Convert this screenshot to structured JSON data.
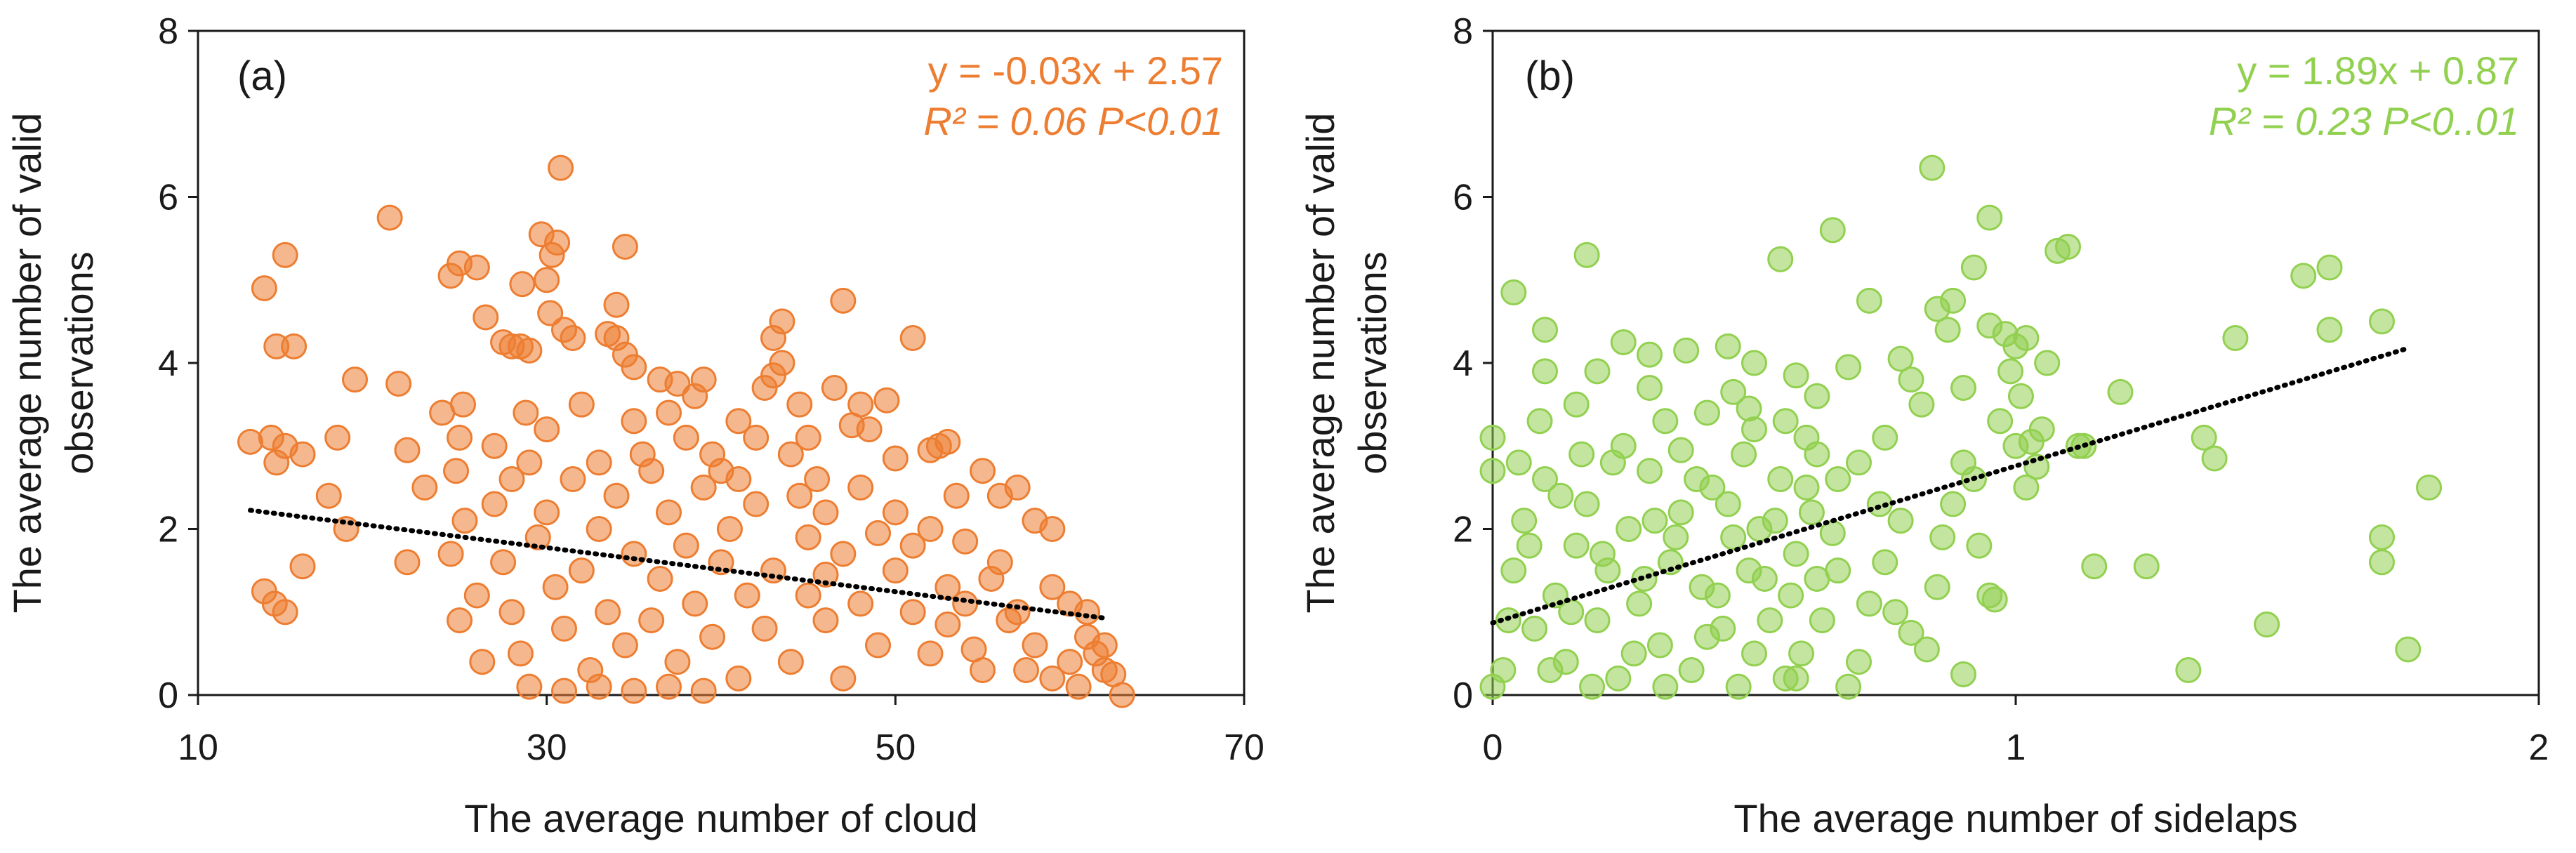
{
  "chart_data": [
    {
      "type": "scatter",
      "panel_label": "(a)",
      "xlabel": "The average number of cloud",
      "ylabel": [
        "The average number of valid",
        "observations"
      ],
      "xlim": [
        10,
        70
      ],
      "ylim": [
        0,
        8
      ],
      "xticks": [
        "10",
        "30",
        "50",
        "70"
      ],
      "yticks": [
        "0",
        "2",
        "4",
        "6",
        "8"
      ],
      "color": "#ED7D31",
      "equation": "y = -0.03x + 2.57",
      "r2_text": "R² = 0.06  P<0.01",
      "trendline": {
        "slope": -0.0265,
        "intercept": 2.57,
        "x_range": [
          13,
          62
        ]
      },
      "points": [
        [
          13,
          3.05
        ],
        [
          13.8,
          4.9
        ],
        [
          14.2,
          3.1
        ],
        [
          14.5,
          4.2
        ],
        [
          15,
          5.3
        ],
        [
          15.5,
          4.2
        ],
        [
          15,
          3.0
        ],
        [
          16,
          2.9
        ],
        [
          14.5,
          2.8
        ],
        [
          13.8,
          1.25
        ],
        [
          14.4,
          1.1
        ],
        [
          15,
          1.0
        ],
        [
          16,
          1.55
        ],
        [
          18,
          3.1
        ],
        [
          19,
          3.8
        ],
        [
          18.5,
          2.0
        ],
        [
          17.5,
          2.4
        ],
        [
          21,
          5.75
        ],
        [
          21.5,
          3.75
        ],
        [
          22,
          2.95
        ],
        [
          22,
          1.6
        ],
        [
          23,
          2.5
        ],
        [
          24,
          3.4
        ],
        [
          25,
          3.1
        ],
        [
          24.5,
          5.05
        ],
        [
          25,
          5.2
        ],
        [
          26,
          5.15
        ],
        [
          25.2,
          3.5
        ],
        [
          24.8,
          2.7
        ],
        [
          25.3,
          2.1
        ],
        [
          24.5,
          1.7
        ],
        [
          25,
          0.9
        ],
        [
          26.3,
          0.4
        ],
        [
          26.5,
          4.55
        ],
        [
          27.5,
          4.25
        ],
        [
          28,
          4.2
        ],
        [
          28.5,
          4.2
        ],
        [
          29,
          4.15
        ],
        [
          28.6,
          4.95
        ],
        [
          28.8,
          3.4
        ],
        [
          29.7,
          5.55
        ],
        [
          30,
          5.0
        ],
        [
          30.3,
          5.3
        ],
        [
          30.6,
          5.45
        ],
        [
          30.2,
          4.6
        ],
        [
          31,
          4.4
        ],
        [
          31.5,
          4.3
        ],
        [
          30.8,
          6.35
        ],
        [
          33.5,
          4.35
        ],
        [
          34,
          4.3
        ],
        [
          34.5,
          5.4
        ],
        [
          34.5,
          4.1
        ],
        [
          35,
          3.95
        ],
        [
          34,
          4.7
        ],
        [
          36.5,
          3.8
        ],
        [
          37.5,
          3.75
        ],
        [
          38.5,
          3.6
        ],
        [
          39,
          3.8
        ],
        [
          38,
          3.1
        ],
        [
          39.5,
          2.9
        ],
        [
          41,
          3.3
        ],
        [
          42,
          3.1
        ],
        [
          42.5,
          3.7
        ],
        [
          43,
          3.85
        ],
        [
          43.5,
          4.0
        ],
        [
          43.5,
          4.5
        ],
        [
          43,
          4.3
        ],
        [
          44.5,
          3.5
        ],
        [
          45,
          3.1
        ],
        [
          45.5,
          2.6
        ],
        [
          46.5,
          3.7
        ],
        [
          47,
          4.75
        ],
        [
          47.5,
          3.25
        ],
        [
          48,
          3.5
        ],
        [
          48.5,
          3.2
        ],
        [
          49.5,
          3.55
        ],
        [
          50,
          2.85
        ],
        [
          51,
          4.3
        ],
        [
          52,
          2.95
        ],
        [
          52.5,
          3.0
        ],
        [
          53,
          3.05
        ],
        [
          53.5,
          2.4
        ],
        [
          54,
          1.85
        ],
        [
          55,
          2.7
        ],
        [
          56,
          2.4
        ],
        [
          57,
          2.5
        ],
        [
          58,
          2.1
        ],
        [
          59,
          2.0
        ],
        [
          60,
          1.1
        ],
        [
          61,
          0.7
        ],
        [
          61.5,
          0.5
        ],
        [
          62,
          0.3
        ],
        [
          62.5,
          0.25
        ],
        [
          63,
          0.0
        ],
        [
          60.5,
          0.1
        ],
        [
          59,
          0.2
        ],
        [
          47,
          0.2
        ],
        [
          46,
          1.45
        ],
        [
          45,
          1.2
        ],
        [
          44.5,
          2.4
        ],
        [
          46,
          2.2
        ],
        [
          48,
          2.5
        ],
        [
          49,
          1.95
        ],
        [
          50,
          1.5
        ],
        [
          51,
          1.0
        ],
        [
          52,
          0.5
        ],
        [
          53,
          0.85
        ],
        [
          54.5,
          0.55
        ],
        [
          55.5,
          1.4
        ],
        [
          56.5,
          0.9
        ],
        [
          57.5,
          0.3
        ],
        [
          27,
          2.3
        ],
        [
          27.5,
          1.6
        ],
        [
          28,
          1.0
        ],
        [
          28.5,
          0.5
        ],
        [
          29,
          2.8
        ],
        [
          29.5,
          1.9
        ],
        [
          30,
          2.2
        ],
        [
          30.5,
          1.3
        ],
        [
          31,
          0.8
        ],
        [
          31.5,
          2.6
        ],
        [
          32,
          1.5
        ],
        [
          32.5,
          0.3
        ],
        [
          33,
          2.0
        ],
        [
          33.5,
          1.0
        ],
        [
          34,
          2.4
        ],
        [
          34.5,
          0.6
        ],
        [
          35,
          1.7
        ],
        [
          35.5,
          2.9
        ],
        [
          36,
          0.9
        ],
        [
          36.5,
          1.4
        ],
        [
          37,
          2.2
        ],
        [
          37.5,
          0.4
        ],
        [
          38,
          1.8
        ],
        [
          38.5,
          1.1
        ],
        [
          39,
          2.5
        ],
        [
          39.5,
          0.7
        ],
        [
          40,
          1.6
        ],
        [
          40.5,
          2.0
        ],
        [
          41,
          0.2
        ],
        [
          41.5,
          1.2
        ],
        [
          42,
          2.3
        ],
        [
          42.5,
          0.8
        ],
        [
          43,
          1.5
        ],
        [
          44,
          0.4
        ],
        [
          29,
          0.1
        ],
        [
          31,
          0.05
        ],
        [
          33,
          0.1
        ],
        [
          35,
          0.05
        ],
        [
          37,
          0.1
        ],
        [
          39,
          0.05
        ],
        [
          26,
          1.2
        ],
        [
          27,
          3.0
        ],
        [
          28,
          2.6
        ],
        [
          30,
          3.2
        ],
        [
          32,
          3.5
        ],
        [
          33,
          2.8
        ],
        [
          35,
          3.3
        ],
        [
          36,
          2.7
        ],
        [
          37,
          3.4
        ],
        [
          40,
          2.7
        ],
        [
          41,
          2.6
        ],
        [
          44,
          2.9
        ],
        [
          45,
          1.9
        ],
        [
          46,
          0.9
        ],
        [
          47,
          1.7
        ],
        [
          48,
          1.1
        ],
        [
          49,
          0.6
        ],
        [
          50,
          2.2
        ],
        [
          51,
          1.8
        ],
        [
          52,
          2.0
        ],
        [
          53,
          1.3
        ],
        [
          54,
          1.1
        ],
        [
          55,
          0.3
        ],
        [
          56,
          1.6
        ],
        [
          57,
          1.0
        ],
        [
          58,
          0.6
        ],
        [
          59,
          1.3
        ],
        [
          60,
          0.4
        ],
        [
          61,
          1.0
        ],
        [
          62,
          0.6
        ]
      ]
    },
    {
      "type": "scatter",
      "panel_label": "(b)",
      "xlabel": "The average number of sidelaps",
      "ylabel": [
        "The average number of valid",
        "observations"
      ],
      "xlim": [
        0,
        2
      ],
      "ylim": [
        0,
        8
      ],
      "xticks": [
        "0",
        "1",
        "2"
      ],
      "yticks": [
        "0",
        "2",
        "4",
        "6",
        "8"
      ],
      "color": "#92D050",
      "equation": "y = 1.89x + 0.87",
      "r2_text": "R² = 0.23  P<0..01",
      "trendline": {
        "slope": 1.89,
        "intercept": 0.87,
        "x_range": [
          0,
          1.75
        ]
      },
      "points": [
        [
          0.0,
          3.1
        ],
        [
          0.0,
          2.7
        ],
        [
          0.04,
          4.85
        ],
        [
          0.1,
          4.4
        ],
        [
          0.1,
          3.9
        ],
        [
          0.18,
          5.3
        ],
        [
          0.2,
          3.9
        ],
        [
          0.16,
          3.5
        ],
        [
          0.25,
          4.25
        ],
        [
          0.3,
          4.1
        ],
        [
          0.3,
          3.7
        ],
        [
          0.36,
          2.95
        ],
        [
          0.37,
          4.15
        ],
        [
          0.45,
          4.2
        ],
        [
          0.46,
          3.65
        ],
        [
          0.49,
          3.45
        ],
        [
          0.5,
          4.0
        ],
        [
          0.55,
          5.25
        ],
        [
          0.58,
          3.85
        ],
        [
          0.62,
          3.6
        ],
        [
          0.65,
          5.6
        ],
        [
          0.68,
          3.95
        ],
        [
          0.72,
          4.75
        ],
        [
          0.78,
          4.05
        ],
        [
          0.8,
          3.8
        ],
        [
          0.82,
          3.5
        ],
        [
          0.75,
          3.1
        ],
        [
          0.7,
          2.8
        ],
        [
          0.84,
          6.35
        ],
        [
          0.85,
          4.65
        ],
        [
          0.87,
          4.4
        ],
        [
          0.88,
          4.75
        ],
        [
          0.9,
          3.7
        ],
        [
          0.92,
          5.15
        ],
        [
          0.95,
          5.75
        ],
        [
          0.95,
          4.45
        ],
        [
          0.98,
          4.35
        ],
        [
          1.0,
          4.2
        ],
        [
          1.02,
          4.3
        ],
        [
          0.97,
          3.3
        ],
        [
          1.0,
          3.0
        ],
        [
          1.03,
          3.05
        ],
        [
          1.04,
          2.75
        ],
        [
          1.02,
          2.5
        ],
        [
          1.06,
          4.0
        ],
        [
          1.08,
          5.35
        ],
        [
          1.1,
          5.4
        ],
        [
          1.13,
          3.0
        ],
        [
          1.15,
          1.55
        ],
        [
          1.2,
          3.65
        ],
        [
          1.25,
          1.55
        ],
        [
          1.36,
          3.1
        ],
        [
          1.38,
          2.85
        ],
        [
          1.42,
          4.3
        ],
        [
          1.55,
          5.05
        ],
        [
          1.6,
          5.15
        ],
        [
          1.6,
          4.4
        ],
        [
          1.48,
          0.85
        ],
        [
          1.33,
          0.3
        ],
        [
          1.7,
          4.5
        ],
        [
          1.7,
          1.9
        ],
        [
          1.7,
          1.6
        ],
        [
          1.75,
          0.55
        ],
        [
          1.79,
          2.5
        ],
        [
          0.95,
          1.2
        ],
        [
          0.96,
          1.15
        ],
        [
          0.93,
          1.8
        ],
        [
          0.9,
          2.8
        ],
        [
          0.88,
          2.3
        ],
        [
          0.85,
          1.3
        ],
        [
          0.8,
          0.75
        ],
        [
          0.83,
          0.55
        ],
        [
          0.9,
          0.25
        ],
        [
          0.78,
          2.1
        ],
        [
          0.75,
          1.6
        ],
        [
          0.72,
          1.1
        ],
        [
          0.7,
          0.4
        ],
        [
          0.68,
          0.1
        ],
        [
          0.65,
          1.95
        ],
        [
          0.62,
          1.4
        ],
        [
          0.6,
          2.5
        ],
        [
          0.58,
          0.2
        ],
        [
          0.02,
          0.3
        ],
        [
          0.04,
          1.5
        ],
        [
          0.06,
          2.1
        ],
        [
          0.08,
          0.8
        ],
        [
          0.1,
          2.6
        ],
        [
          0.12,
          1.2
        ],
        [
          0.14,
          0.4
        ],
        [
          0.16,
          1.8
        ],
        [
          0.18,
          2.3
        ],
        [
          0.2,
          0.9
        ],
        [
          0.22,
          1.5
        ],
        [
          0.24,
          0.2
        ],
        [
          0.26,
          2.0
        ],
        [
          0.28,
          1.1
        ],
        [
          0.3,
          2.7
        ],
        [
          0.32,
          0.6
        ],
        [
          0.34,
          1.6
        ],
        [
          0.36,
          2.2
        ],
        [
          0.38,
          0.3
        ],
        [
          0.4,
          1.3
        ],
        [
          0.42,
          2.5
        ],
        [
          0.44,
          0.8
        ],
        [
          0.46,
          1.9
        ],
        [
          0.48,
          2.9
        ],
        [
          0.5,
          0.5
        ],
        [
          0.52,
          1.4
        ],
        [
          0.54,
          2.1
        ],
        [
          0.56,
          0.2
        ],
        [
          0.58,
          1.7
        ],
        [
          0.6,
          3.1
        ],
        [
          0.0,
          0.1
        ],
        [
          0.03,
          0.9
        ],
        [
          0.07,
          1.8
        ],
        [
          0.11,
          0.3
        ],
        [
          0.13,
          2.4
        ],
        [
          0.15,
          1.0
        ],
        [
          0.19,
          0.1
        ],
        [
          0.21,
          1.7
        ],
        [
          0.23,
          2.8
        ],
        [
          0.27,
          0.5
        ],
        [
          0.29,
          1.4
        ],
        [
          0.31,
          2.1
        ],
        [
          0.33,
          0.1
        ],
        [
          0.35,
          1.9
        ],
        [
          0.39,
          2.6
        ],
        [
          0.41,
          0.7
        ],
        [
          0.43,
          1.2
        ],
        [
          0.45,
          2.3
        ],
        [
          0.47,
          0.1
        ],
        [
          0.49,
          1.5
        ],
        [
          0.51,
          2.0
        ],
        [
          0.53,
          0.9
        ],
        [
          0.55,
          2.6
        ],
        [
          0.57,
          1.2
        ],
        [
          0.59,
          0.5
        ],
        [
          0.61,
          2.2
        ],
        [
          0.63,
          0.9
        ],
        [
          0.66,
          1.5
        ],
        [
          0.05,
          2.8
        ],
        [
          0.09,
          3.3
        ],
        [
          0.17,
          2.9
        ],
        [
          0.25,
          3.0
        ],
        [
          0.33,
          3.3
        ],
        [
          0.41,
          3.4
        ],
        [
          0.5,
          3.2
        ],
        [
          0.56,
          3.3
        ],
        [
          0.62,
          2.9
        ],
        [
          0.66,
          2.6
        ],
        [
          0.74,
          2.3
        ],
        [
          0.77,
          1.0
        ],
        [
          0.86,
          1.9
        ],
        [
          0.92,
          2.6
        ],
        [
          0.99,
          3.9
        ],
        [
          1.01,
          3.6
        ],
        [
          1.05,
          3.2
        ],
        [
          1.12,
          3.0
        ]
      ]
    }
  ]
}
